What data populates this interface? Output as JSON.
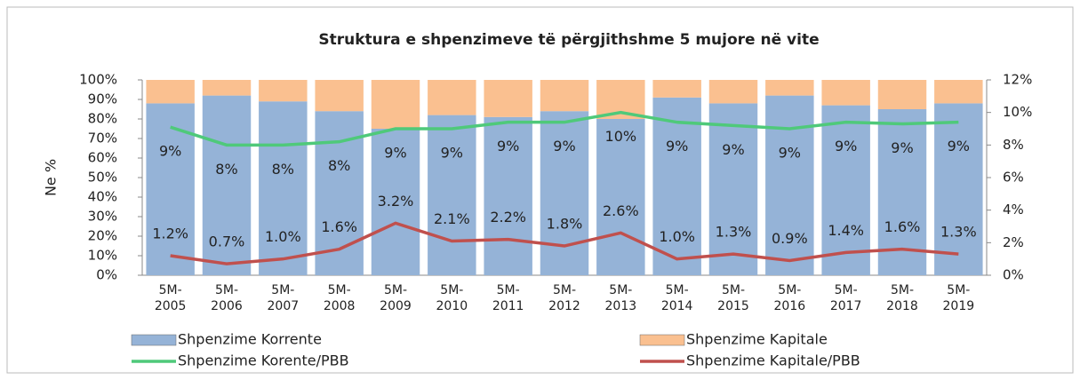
{
  "chart_data": {
    "type": "bar",
    "stacked": true,
    "title": "Struktura e shpenzimeve të përgjithshme 5 mujore në vite",
    "ylabel": "Ne %",
    "categories": [
      "5M-2005",
      "5M-2006",
      "5M-2007",
      "5M-2008",
      "5M-2009",
      "5M-2010",
      "5M-2011",
      "5M-2012",
      "5M-2013",
      "5M-2014",
      "5M-2015",
      "5M-2016",
      "5M-2017",
      "5M-2018",
      "5M-2019"
    ],
    "series": [
      {
        "name": "Shpenzime Korrente",
        "color": "#95b3d7",
        "values": [
          88,
          92,
          89,
          84,
          75,
          82,
          81,
          84,
          80,
          91,
          88,
          92,
          87,
          85,
          88
        ]
      },
      {
        "name": "Shpenzime Kapitale",
        "color": "#fac090",
        "values": [
          12,
          8,
          11,
          16,
          25,
          18,
          19,
          16,
          20,
          9,
          12,
          8,
          13,
          15,
          12
        ]
      },
      {
        "name": "Shpenzime Korente/PBB",
        "type": "line",
        "axis": "y2",
        "color": "#4fc97a",
        "values": [
          9.1,
          8.0,
          8.0,
          8.2,
          9.0,
          9.0,
          9.4,
          9.4,
          10.0,
          9.4,
          9.2,
          9.0,
          9.4,
          9.3,
          9.4
        ],
        "value_labels": [
          "9%",
          "8%",
          "8%",
          "8%",
          "9%",
          "9%",
          "9%",
          "9%",
          "10%",
          "9%",
          "9%",
          "9%",
          "9%",
          "9%",
          "9%"
        ]
      },
      {
        "name": "Shpenzime Kapitale/PBB",
        "type": "line",
        "axis": "y2",
        "color": "#c0504d",
        "values": [
          1.2,
          0.7,
          1.0,
          1.6,
          3.2,
          2.1,
          2.2,
          1.8,
          2.6,
          1.0,
          1.3,
          0.9,
          1.4,
          1.6,
          1.3
        ],
        "value_labels": [
          "1.2%",
          "0.7%",
          "1.0%",
          "1.6%",
          "3.2%",
          "2.1%",
          "2.2%",
          "1.8%",
          "2.6%",
          "1.0%",
          "1.3%",
          "0.9%",
          "1.4%",
          "1.6%",
          "1.3%"
        ]
      }
    ],
    "ylim": [
      0,
      100
    ],
    "yticks": [
      {
        "value": 0,
        "label": "0%"
      },
      {
        "value": 10,
        "label": "10%"
      },
      {
        "value": 20,
        "label": "20%"
      },
      {
        "value": 30,
        "label": "30%"
      },
      {
        "value": 40,
        "label": "40%"
      },
      {
        "value": 50,
        "label": "50%"
      },
      {
        "value": 60,
        "label": "60%"
      },
      {
        "value": 70,
        "label": "70%"
      },
      {
        "value": 80,
        "label": "80%"
      },
      {
        "value": 90,
        "label": "90%"
      },
      {
        "value": 100,
        "label": "100%"
      }
    ],
    "y2lim": [
      0,
      12
    ],
    "y2ticks": [
      {
        "value": 0,
        "label": "0%"
      },
      {
        "value": 2,
        "label": "2%"
      },
      {
        "value": 4,
        "label": "4%"
      },
      {
        "value": 6,
        "label": "6%"
      },
      {
        "value": 8,
        "label": "8%"
      },
      {
        "value": 10,
        "label": "10%"
      },
      {
        "value": 12,
        "label": "12%"
      }
    ]
  }
}
